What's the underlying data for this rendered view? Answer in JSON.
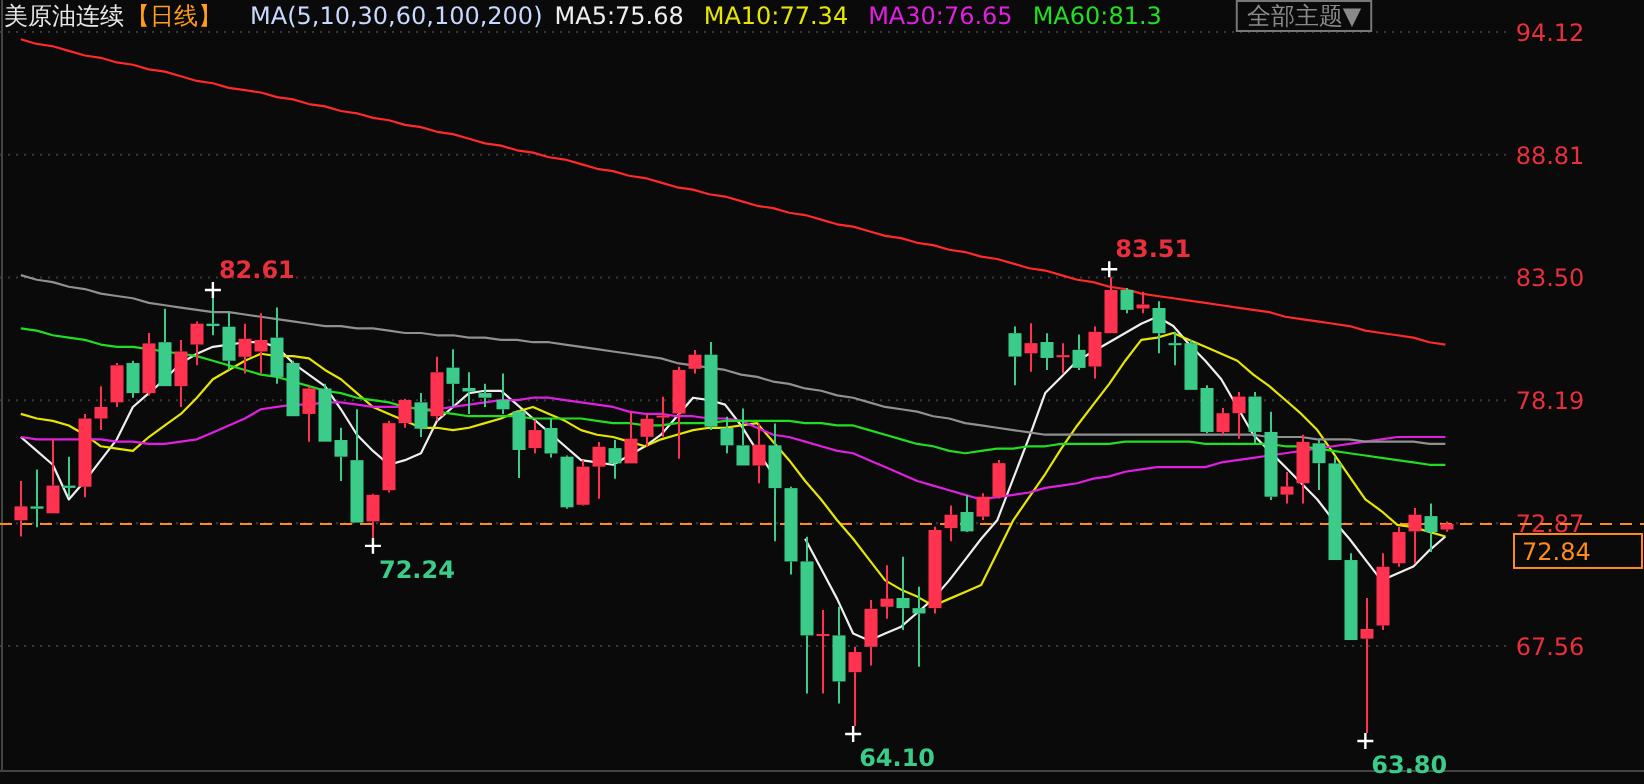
{
  "chart_data": {
    "type": "candlestick",
    "title": "美原油连续",
    "subtitle": "【日线】",
    "legend_title": "MA(5,10,30,60,100,200)",
    "grid": "y",
    "tick_labels": "y",
    "categories": [
      null,
      null,
      null,
      null,
      null,
      null,
      null,
      null,
      null,
      null,
      null,
      null,
      null,
      null,
      null,
      null,
      null,
      null,
      null,
      null,
      null,
      null,
      null,
      null,
      null,
      null,
      null,
      null,
      null,
      null,
      null,
      null,
      null,
      null,
      null,
      null,
      null,
      null,
      null,
      null,
      null,
      null,
      null,
      null,
      null,
      null,
      null,
      null,
      null,
      null,
      null,
      null,
      null,
      null,
      null,
      null,
      null,
      null,
      null,
      null,
      null,
      null,
      null,
      null,
      null,
      null,
      null,
      null,
      null,
      null,
      null,
      null,
      null,
      null,
      null,
      null,
      null,
      null,
      null,
      null,
      null,
      null,
      null,
      null,
      null,
      null,
      null,
      null,
      null,
      null
    ],
    "ohlc": [
      [
        73.0,
        74.7,
        72.3,
        73.6
      ],
      [
        73.6,
        75.2,
        72.7,
        73.5
      ],
      [
        73.3,
        76.5,
        73.3,
        74.5
      ],
      [
        74.5,
        75.75,
        74.0,
        74.4
      ],
      [
        74.45,
        77.6,
        74.0,
        77.4
      ],
      [
        77.4,
        78.8,
        76.9,
        77.9
      ],
      [
        78.1,
        79.8,
        77.9,
        79.7
      ],
      [
        79.8,
        79.9,
        78.3,
        78.5
      ],
      [
        78.5,
        81.1,
        78.4,
        80.65
      ],
      [
        80.7,
        82.15,
        78.8,
        78.8
      ],
      [
        78.8,
        80.8,
        77.9,
        80.3
      ],
      [
        80.6,
        81.6,
        79.7,
        81.5
      ],
      [
        81.5,
        82.61,
        81.0,
        81.4
      ],
      [
        81.37,
        82.0,
        79.5,
        79.9
      ],
      [
        80.07,
        81.5,
        79.35,
        80.85
      ],
      [
        80.3,
        81.95,
        79.35,
        80.8
      ],
      [
        80.9,
        82.2,
        78.9,
        79.2
      ],
      [
        79.8,
        79.9,
        77.5,
        77.5
      ],
      [
        77.6,
        78.8,
        76.4,
        78.7
      ],
      [
        78.7,
        78.9,
        76.4,
        76.4
      ],
      [
        76.47,
        77.0,
        74.7,
        75.75
      ],
      [
        75.6,
        77.8,
        72.9,
        72.9
      ],
      [
        72.95,
        74.15,
        72.24,
        74.1
      ],
      [
        74.3,
        77.3,
        74.2,
        77.2
      ],
      [
        77.2,
        78.26,
        77.0,
        78.2
      ],
      [
        78.1,
        78.5,
        76.6,
        76.96
      ],
      [
        77.5,
        80.07,
        77.3,
        79.4
      ],
      [
        79.6,
        80.4,
        77.9,
        78.9
      ],
      [
        78.72,
        79.4,
        77.6,
        78.57
      ],
      [
        78.5,
        78.9,
        77.9,
        78.3
      ],
      [
        78.2,
        79.35,
        77.6,
        77.8
      ],
      [
        77.71,
        77.77,
        74.83,
        76.04
      ],
      [
        76.12,
        77.33,
        75.9,
        76.9
      ],
      [
        76.99,
        77.39,
        75.72,
        75.89
      ],
      [
        75.75,
        75.8,
        73.5,
        73.56
      ],
      [
        73.67,
        75.6,
        73.64,
        75.32
      ],
      [
        75.32,
        76.38,
        73.93,
        76.18
      ],
      [
        76.12,
        76.47,
        74.8,
        75.46
      ],
      [
        75.46,
        77.68,
        75.46,
        76.53
      ],
      [
        76.61,
        77.62,
        76.18,
        77.39
      ],
      [
        77.45,
        78.34,
        76.61,
        77.53
      ],
      [
        77.62,
        79.64,
        75.66,
        79.5
      ],
      [
        79.55,
        80.36,
        79.35,
        80.16
      ],
      [
        80.16,
        80.71,
        76.9,
        77.05
      ],
      [
        76.99,
        77.48,
        75.9,
        76.24
      ],
      [
        76.24,
        77.83,
        75.37,
        75.37
      ],
      [
        75.37,
        77.19,
        74.6,
        76.27
      ],
      [
        76.24,
        77.19,
        72.09,
        74.39
      ],
      [
        74.39,
        74.45,
        70.65,
        71.22
      ],
      [
        71.22,
        72.29,
        65.51,
        68.02
      ],
      [
        68.02,
        69.12,
        65.51,
        68.08
      ],
      [
        68.02,
        69.26,
        65.08,
        66.03
      ],
      [
        66.43,
        67.53,
        64.1,
        67.3
      ],
      [
        67.53,
        69.55,
        66.72,
        69.17
      ],
      [
        69.26,
        71.05,
        68.74,
        69.61
      ],
      [
        69.64,
        71.42,
        68.25,
        69.2
      ],
      [
        69.2,
        70.13,
        66.67,
        68.97
      ],
      [
        69.2,
        72.72,
        68.97,
        72.58
      ],
      [
        72.66,
        73.64,
        72.09,
        73.24
      ],
      [
        73.36,
        74.08,
        72.49,
        72.52
      ],
      [
        73.16,
        74.17,
        73.01,
        74.02
      ],
      [
        74.02,
        75.61,
        73.94,
        75.47
      ],
      [
        81.09,
        81.38,
        78.84,
        80.08
      ],
      [
        80.22,
        81.52,
        79.42,
        80.66
      ],
      [
        80.71,
        81.09,
        79.5,
        80.02
      ],
      [
        80.05,
        80.66,
        79.36,
        80.14
      ],
      [
        80.37,
        81.03,
        79.5,
        79.59
      ],
      [
        79.65,
        81.38,
        79.13,
        81.15
      ],
      [
        81.09,
        83.51,
        81.09,
        82.96
      ],
      [
        82.96,
        83.05,
        81.95,
        82.1
      ],
      [
        82.16,
        82.88,
        81.95,
        82.33
      ],
      [
        82.18,
        82.47,
        80.22,
        81.09
      ],
      [
        80.66,
        81.15,
        79.7,
        80.57
      ],
      [
        80.66,
        80.8,
        78.64,
        78.64
      ],
      [
        78.72,
        78.84,
        76.76,
        76.82
      ],
      [
        76.82,
        77.86,
        76.7,
        77.63
      ],
      [
        77.63,
        78.55,
        76.53,
        78.35
      ],
      [
        78.35,
        78.55,
        76.33,
        76.82
      ],
      [
        76.82,
        77.69,
        73.88,
        74.02
      ],
      [
        74.11,
        75.09,
        73.73,
        74.46
      ],
      [
        74.6,
        76.7,
        73.73,
        76.39
      ],
      [
        76.33,
        76.47,
        74.31,
        75.47
      ],
      [
        75.46,
        75.75,
        71.28,
        71.28
      ],
      [
        71.28,
        71.57,
        67.82,
        67.82
      ],
      [
        67.88,
        69.64,
        63.8,
        68.3
      ],
      [
        68.45,
        71.57,
        68.25,
        70.99
      ],
      [
        71.14,
        72.72,
        70.99,
        72.49
      ],
      [
        72.52,
        73.53,
        71.14,
        73.24
      ],
      [
        73.18,
        73.73,
        71.63,
        72.49
      ],
      [
        72.6,
        72.95,
        72.5,
        72.84
      ]
    ],
    "ylim": [
      62.2,
      95.5
    ],
    "yticks": [
      94.12,
      88.81,
      {
        "value": 83.5,
        "label": "83.50"
      },
      78.19,
      72.87,
      67.56
    ],
    "ref_lines": [
      {
        "axis": "y",
        "value": 72.84,
        "label": "72.84",
        "color": "#ff8c1a",
        "line_style": "dashed"
      }
    ],
    "annotations": [
      "全部主题▼",
      "82.61",
      "72.24",
      "64.10",
      "83.51",
      "63.80"
    ],
    "series": [
      {
        "name": "MA5:75.68",
        "type": "line",
        "color": "#eeeeee",
        "values": [
          76.6,
          76.0,
          75.4,
          73.9,
          74.7,
          75.6,
          76.5,
          77.9,
          78.5,
          79.1,
          79.8,
          80.2,
          80.5,
          80.6,
          80.7,
          80.7,
          80.5,
          79.8,
          79.3,
          78.8,
          77.8,
          76.7,
          76.0,
          75.4,
          75.6,
          75.9,
          77.3,
          77.9,
          78.5,
          78.6,
          78.6,
          78.0,
          77.4,
          76.8,
          76.2,
          75.6,
          75.5,
          75.4,
          75.8,
          76.2,
          76.7,
          77.5,
          78.3,
          78.2,
          78.0,
          77.1,
          76.0,
          75.0,
          null,
          72.2,
          70.9,
          69.6,
          68.1,
          67.8,
          68.1,
          68.4,
          69.0,
          69.6,
          70.4,
          71.3,
          72.2,
          73.0,
          74.8,
          76.6,
          78.5,
          79.2,
          79.9,
          80.3,
          80.7,
          81.1,
          81.5,
          81.8,
          81.4,
          80.6,
          79.9,
          79.1,
          77.9,
          76.7,
          76.0,
          75.3,
          74.6,
          73.9,
          73.0,
          72.2,
          71.3,
          70.4,
          70.7,
          71.0,
          71.7,
          72.3
        ]
      },
      {
        "name": "MA10:77.34",
        "type": "line",
        "color": "#e6e600",
        "values": [
          77.6,
          77.4,
          77.3,
          77.1,
          76.7,
          76.2,
          76.1,
          76.0,
          76.6,
          77.1,
          77.6,
          78.3,
          79.1,
          79.5,
          79.9,
          80.2,
          80.1,
          80.1,
          80.0,
          79.5,
          79.1,
          78.5,
          77.9,
          77.6,
          77.3,
          77.0,
          77.0,
          76.9,
          77.0,
          77.2,
          77.4,
          77.7,
          77.9,
          77.6,
          77.3,
          76.9,
          76.7,
          76.6,
          76.4,
          76.2,
          76.5,
          76.7,
          76.9,
          77.0,
          77.0,
          77.1,
          77.2,
          76.4,
          75.6,
          74.7,
          73.9,
          73.0,
          72.2,
          71.3,
          70.4,
          70.0,
          69.7,
          69.3,
          69.6,
          69.9,
          70.2,
          71.6,
          73.0,
          74.0,
          75.0,
          76.1,
          77.1,
          78.0,
          78.9,
          79.9,
          80.8,
          80.9,
          81.1,
          80.8,
          80.5,
          80.2,
          79.9,
          79.3,
          78.8,
          78.2,
          77.6,
          76.9,
          75.9,
          74.9,
          73.9,
          73.4,
          72.8,
          72.7,
          72.5,
          72.3
        ]
      },
      {
        "name": "MA30:76.65",
        "type": "line",
        "color": "#e020e0",
        "values": [
          76.6,
          76.5,
          76.5,
          76.5,
          76.5,
          76.5,
          76.4,
          76.4,
          76.3,
          76.3,
          76.4,
          76.5,
          76.8,
          77.1,
          77.4,
          77.8,
          77.9,
          78.0,
          78.0,
          78.1,
          78.1,
          78.0,
          77.9,
          77.9,
          77.9,
          77.8,
          77.8,
          77.9,
          78.0,
          78.1,
          78.2,
          78.2,
          78.3,
          78.3,
          78.2,
          78.1,
          78.0,
          77.9,
          77.7,
          77.6,
          77.6,
          77.5,
          77.5,
          77.4,
          77.4,
          77.3,
          77.0,
          76.7,
          76.6,
          76.4,
          76.2,
          76.0,
          75.9,
          75.6,
          75.3,
          75.0,
          74.7,
          74.5,
          74.3,
          74.1,
          73.9,
          74.0,
          74.1,
          74.2,
          74.4,
          74.5,
          74.6,
          74.8,
          74.9,
          75.1,
          75.2,
          75.3,
          75.3,
          75.3,
          75.3,
          75.5,
          75.6,
          75.7,
          75.8,
          75.9,
          76.0,
          76.1,
          76.2,
          76.3,
          76.4,
          76.5,
          76.6,
          76.6,
          76.6,
          76.6
        ]
      },
      {
        "name": "MA60:81.3",
        "type": "line",
        "color": "#22dd22",
        "values": [
          81.3,
          81.2,
          81.0,
          80.9,
          80.8,
          80.6,
          80.5,
          80.5,
          80.4,
          80.3,
          80.2,
          80.1,
          79.9,
          79.7,
          79.5,
          79.3,
          79.2,
          79.0,
          78.8,
          78.6,
          78.5,
          78.3,
          78.2,
          78.1,
          77.9,
          77.8,
          77.7,
          77.6,
          77.5,
          77.5,
          77.5,
          77.5,
          77.4,
          77.4,
          77.4,
          77.4,
          77.3,
          77.2,
          77.2,
          77.1,
          77.1,
          77.2,
          77.2,
          77.2,
          77.3,
          77.3,
          77.3,
          77.3,
          77.3,
          77.2,
          77.2,
          77.1,
          77.1,
          76.9,
          76.7,
          76.5,
          76.3,
          76.2,
          76.0,
          75.9,
          76.0,
          76.1,
          76.1,
          76.2,
          76.2,
          76.3,
          76.3,
          76.3,
          76.3,
          76.4,
          76.4,
          76.4,
          76.4,
          76.4,
          76.3,
          76.3,
          76.3,
          76.3,
          76.3,
          76.2,
          76.2,
          76.1,
          76.0,
          75.9,
          75.8,
          75.7,
          75.6,
          75.5,
          75.4,
          75.4
        ]
      },
      {
        "type": "line",
        "color": "#909090",
        "values": [
          83.6,
          83.4,
          83.3,
          83.1,
          83.0,
          82.8,
          82.7,
          82.6,
          82.4,
          82.3,
          82.2,
          82.1,
          82.0,
          82.0,
          81.9,
          81.8,
          81.7,
          81.6,
          81.5,
          81.4,
          81.4,
          81.3,
          81.3,
          81.2,
          81.1,
          81.1,
          81.0,
          81.0,
          80.9,
          80.9,
          80.8,
          80.8,
          80.7,
          80.7,
          80.6,
          80.5,
          80.4,
          80.3,
          80.2,
          80.1,
          80.0,
          79.8,
          79.7,
          79.6,
          79.5,
          79.3,
          79.2,
          79.0,
          78.9,
          78.7,
          78.6,
          78.4,
          78.3,
          78.1,
          77.9,
          77.8,
          77.7,
          77.5,
          77.4,
          77.2,
          77.1,
          77.0,
          76.9,
          76.8,
          76.7,
          76.7,
          76.7,
          76.7,
          76.7,
          76.7,
          76.7,
          76.7,
          76.7,
          76.7,
          76.7,
          76.7,
          76.7,
          76.7,
          76.6,
          76.6,
          76.6,
          76.5,
          76.5,
          76.5,
          76.4,
          76.4,
          76.4,
          76.4,
          76.3,
          76.3
        ]
      },
      {
        "type": "line",
        "color": "#ff2a2a",
        "values": [
          93.8,
          93.6,
          93.5,
          93.3,
          93.1,
          93.0,
          92.8,
          92.7,
          92.5,
          92.4,
          92.2,
          92.0,
          91.9,
          91.7,
          91.6,
          91.5,
          91.3,
          91.2,
          91.0,
          90.9,
          90.7,
          90.6,
          90.4,
          90.3,
          90.1,
          90.0,
          89.8,
          89.7,
          89.5,
          89.3,
          89.2,
          89.0,
          88.9,
          88.7,
          88.6,
          88.4,
          88.2,
          88.1,
          87.9,
          87.8,
          87.6,
          87.4,
          87.3,
          87.1,
          87.0,
          86.8,
          86.6,
          86.5,
          86.3,
          86.2,
          86.0,
          85.8,
          85.7,
          85.5,
          85.3,
          85.2,
          85.0,
          84.9,
          84.7,
          84.6,
          84.4,
          84.3,
          84.1,
          83.9,
          83.8,
          83.6,
          83.4,
          83.3,
          83.1,
          83.0,
          82.8,
          82.7,
          82.6,
          82.5,
          82.4,
          82.3,
          82.2,
          82.1,
          82.0,
          81.8,
          81.7,
          81.6,
          81.5,
          81.4,
          81.2,
          81.1,
          81.0,
          80.9,
          80.7,
          80.6
        ]
      }
    ]
  }
}
